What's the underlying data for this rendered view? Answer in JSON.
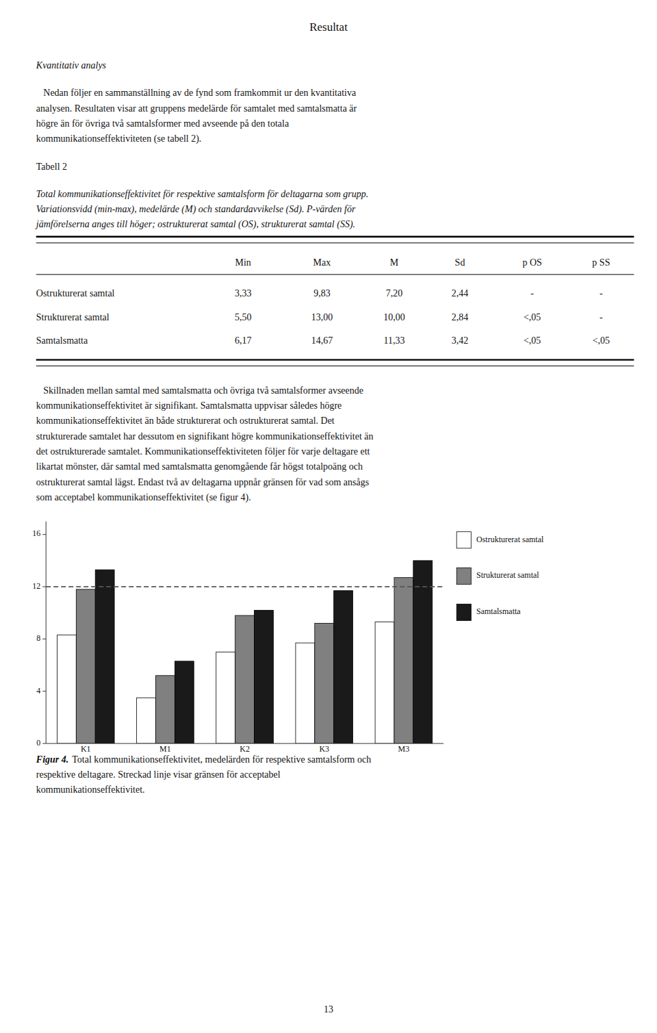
{
  "page": {
    "title": "Resultat",
    "section_heading": "Kvantitativ analys",
    "paragraph_1": [
      "   Nedan följer en sammanställning av de fynd som framkommit ur den kvantitativa",
      "analysen. Resultaten visar att gruppens medelärde för samtalet med samtalsmatta är",
      "högre än för övriga två samtalsformer med avseende på den totala",
      "kommunikationseffektiviteten (se tabell 2)."
    ],
    "table_heading": "Tabell 2",
    "table_caption": [
      "Total kommunikationseffektivitet för respektive samtalsform för deltagarna som grupp.",
      "Variationsvidd (min-max), medelärde (M) och standardavvikelse (Sd). P-värden för",
      "jämförelserna anges till höger; ostrukturerat samtal (OS), strukturerat samtal (SS)."
    ],
    "table": {
      "columns": [
        "Min",
        "Max",
        "M",
        "Sd",
        "p OS",
        "p SS"
      ],
      "rows": [
        [
          "Ostrukturerat samtal",
          "3,33",
          "9,83",
          "7,20",
          "2,44",
          "-",
          "-"
        ],
        [
          "Strukturerat samtal",
          "5,50",
          "13,00",
          "10,00",
          "2,84",
          "<,05",
          "-"
        ],
        [
          "Samtalsmatta",
          "6,17",
          "14,67",
          "11,33",
          "3,42",
          "<,05",
          "<,05"
        ]
      ]
    },
    "paragraph_2": [
      "   Skillnaden mellan samtal med samtalsmatta och övriga två samtalsformer avseende",
      "kommunikationseffektivitet är signifikant. Samtalsmatta uppvisar således högre",
      "kommunikationseffektivitet än både strukturerat och ostrukturerat samtal. Det",
      "strukturerade samtalet har dessutom en signifikant högre kommunikationseffektivitet än",
      "det ostrukturerade samtalet. Kommunikationseffektiviteten följer för varje deltagare ett",
      "likartat mönster, där samtal med samtalsmatta genomgående får högst totalpoäng och",
      "ostrukturerat samtal lägst. Endast två av deltagarna uppnår gränsen för vad som ansågs",
      "som acceptabel kommunikationseffektivitet (se figur 4)."
    ],
    "figure_label": "Figur 4.",
    "figure_caption": [
      "Total kommunikationseffektivitet, medelärden för respektive samtalsform och",
      "respektive deltagare. Streckad linje visar gränsen för acceptabel",
      "kommunikationseffektivitet."
    ],
    "page_number": "13"
  },
  "chart_data": {
    "type": "bar",
    "categories": [
      "K1",
      "M1",
      "K2",
      "K3",
      "M3"
    ],
    "series": [
      {
        "name": "Ostrukturerat samtal",
        "color": "#ffffff",
        "values": [
          8.3,
          3.5,
          7.0,
          7.7,
          9.3
        ]
      },
      {
        "name": "Strukturerat samtal",
        "color": "#808080",
        "values": [
          11.8,
          5.2,
          9.8,
          9.2,
          12.7
        ]
      },
      {
        "name": "Samtalsmatta",
        "color": "#1a1a1a",
        "values": [
          13.3,
          6.3,
          10.2,
          11.7,
          14.0
        ]
      }
    ],
    "threshold": 12,
    "ylim": [
      0,
      17
    ],
    "yticks": [
      0,
      4,
      8,
      12,
      16
    ],
    "grid": false,
    "legend": "right"
  }
}
